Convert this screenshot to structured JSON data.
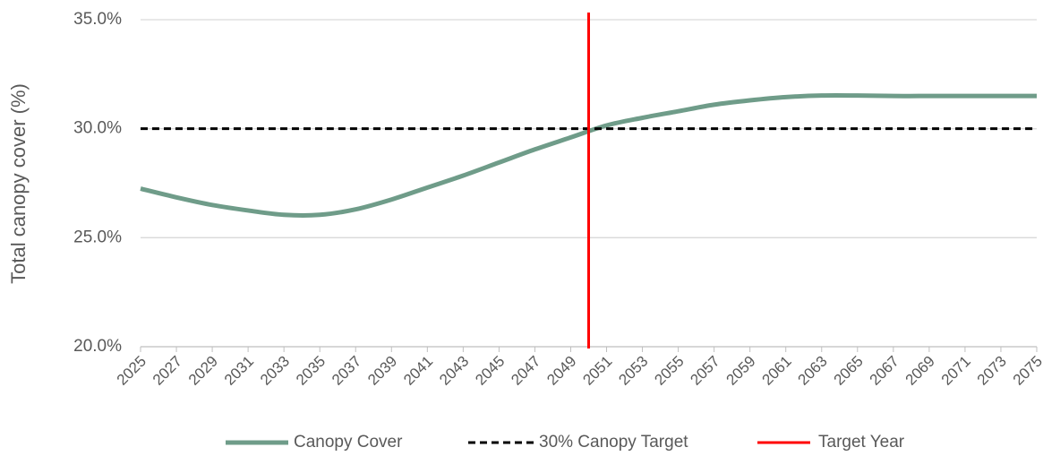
{
  "chart_data": {
    "type": "line",
    "y_label": "Total canopy cover (%)",
    "x": [
      2025,
      2027,
      2029,
      2031,
      2033,
      2035,
      2037,
      2039,
      2041,
      2043,
      2045,
      2047,
      2049,
      2051,
      2053,
      2055,
      2057,
      2059,
      2061,
      2063,
      2065,
      2067,
      2069,
      2071,
      2073,
      2075
    ],
    "series": [
      {
        "name": "Canopy Cover",
        "color": "#6f9c89",
        "values": [
          27.25,
          26.85,
          26.5,
          26.25,
          26.05,
          26.05,
          26.3,
          26.75,
          27.3,
          27.85,
          28.45,
          29.05,
          29.6,
          30.15,
          30.5,
          30.8,
          31.1,
          31.3,
          31.45,
          31.52,
          31.52,
          31.5,
          31.5,
          31.5,
          31.5,
          31.5
        ]
      },
      {
        "name": "30% Canopy Target",
        "color": "#000000",
        "dashed": true,
        "x": [
          2025,
          2075
        ],
        "values": [
          30,
          30
        ]
      }
    ],
    "vlines": [
      {
        "name": "Target Year",
        "color": "#ff0000",
        "x": 2050
      }
    ],
    "xlim": [
      2025,
      2075
    ],
    "xticks": [
      2025,
      2027,
      2029,
      2031,
      2033,
      2035,
      2037,
      2039,
      2041,
      2043,
      2045,
      2047,
      2049,
      2051,
      2053,
      2055,
      2057,
      2059,
      2061,
      2063,
      2065,
      2067,
      2069,
      2071,
      2073,
      2075
    ],
    "ylim": [
      20,
      35
    ],
    "yticks": [
      {
        "value": 20,
        "label": "20.0%"
      },
      {
        "value": 25,
        "label": "25.0%"
      },
      {
        "value": 30,
        "label": "30.0%"
      },
      {
        "value": 35,
        "label": "35.0%"
      }
    ],
    "grid": true,
    "legend": "bottom"
  }
}
